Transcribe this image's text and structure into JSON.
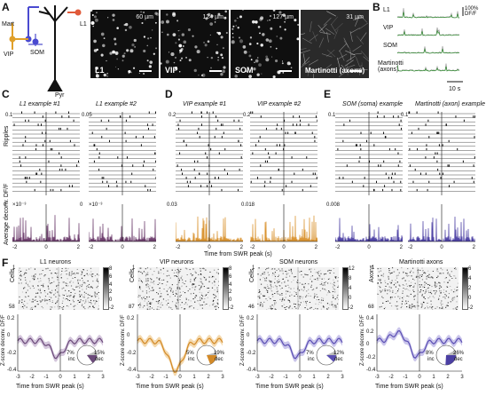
{
  "panel_labels": {
    "A": "A",
    "B": "B",
    "C": "C",
    "D": "D",
    "E": "E",
    "F": "F"
  },
  "panelA": {
    "cells": {
      "mart": "Mart",
      "l1": "L1",
      "vip": "VIP",
      "som": "SOM",
      "pyr": "Pyr"
    },
    "images": [
      {
        "label": "L1",
        "depth": "60 µm"
      },
      {
        "label": "VIP",
        "depth": "124 µm"
      },
      {
        "label": "SOM",
        "depth": "127 µm"
      },
      {
        "label": "Martinotti (axons)",
        "depth": "31 µm"
      }
    ]
  },
  "panelB": {
    "labels": [
      "L1",
      "VIP",
      "SOM",
      "Martinotti\n(axons)"
    ],
    "scale_y": "100%\nDF/F",
    "scale_x": "10 s"
  },
  "raster_panels": [
    {
      "title": "L1 example #1",
      "ymax": "0.1",
      "ymin": "0",
      "exp": "×10⁻³",
      "xticks": [
        "-2",
        "0",
        "2"
      ],
      "color": "#6b3b6b",
      "side_ylabel": "Ripples",
      "avg_ylabel": "Average deconv. DF/F"
    },
    {
      "title": "L1 example #2",
      "ymax": "0.05",
      "ymin": "0",
      "exp": "×10⁻³",
      "xticks": [
        "-2",
        "0",
        "2"
      ],
      "color": "#6b3b6b"
    },
    {
      "title": "VIP example #1",
      "ymax": "0.2",
      "ymin": "0.03",
      "exp": "",
      "xticks": [
        "-2",
        "0",
        "2"
      ],
      "color": "#d9922e"
    },
    {
      "title": "VIP example #2",
      "ymax": "0.2",
      "ymin": "0.018",
      "exp": "",
      "xticks": [
        "-2",
        "0",
        "2"
      ],
      "color": "#d9922e"
    },
    {
      "title": "SOM (soma) example",
      "ymax": "0.1",
      "ymin": "0.008",
      "exp": "",
      "xticks": [
        "-2",
        "0",
        "2"
      ],
      "color": "#4b3fa3"
    },
    {
      "title": "Martinotti (axon) example",
      "ymax": "0.1",
      "ymin": "",
      "exp": "",
      "xticks": [
        "-2",
        "0",
        "2"
      ],
      "color": "#4b3fa3"
    }
  ],
  "time_label_cde": "Time from SWR peak (s)",
  "avg_bottom_labels": {
    "l1a": "9",
    "l1b": "9"
  },
  "panelF": [
    {
      "title": "L1 neurons",
      "rows_label": "Cells",
      "rows": "58",
      "row_start": "1",
      "cb_ticks": [
        "8",
        "6",
        "4",
        "2",
        "0",
        "-2"
      ],
      "cb_label": "Z-score deconv. DF/F",
      "color": "#6b4a7a",
      "fill": "#c9b8d3",
      "inc": "7%",
      "dec": "15%",
      "inc_label": "inc",
      "dec_label": "dec",
      "inc_frac": 0.07,
      "dec_frac": 0.15,
      "dec_color": "#6b4a7a"
    },
    {
      "title": "VIP neurons",
      "rows_label": "Cells",
      "rows": "87",
      "row_start": "1",
      "cb_ticks": [
        "8",
        "6",
        "4",
        "2",
        "0",
        "-2"
      ],
      "cb_label": "Z-score deconv. DF/F",
      "color": "#d38a28",
      "fill": "#f1cf9a",
      "inc": "5%",
      "dec": "19%",
      "inc_label": "inc",
      "dec_label": "dec",
      "inc_frac": 0.05,
      "dec_frac": 0.19,
      "dec_color": "#d38a28"
    },
    {
      "title": "SOM neurons",
      "rows_label": "Cells",
      "rows": "46",
      "row_start": "1",
      "cb_ticks": [
        "12",
        "8",
        "4",
        "0",
        "-2"
      ],
      "cb_label": "Z-score deconv. DF/F",
      "color": "#5b4fb3",
      "fill": "#bdb6e6",
      "inc": "7%",
      "dec": "12%",
      "inc_label": "inc",
      "dec_label": "dec",
      "inc_frac": 0.07,
      "dec_frac": 0.12,
      "dec_color": "#5b4fb3"
    },
    {
      "title": "Martinotti axons",
      "rows_label": "Axons",
      "rows": "68",
      "row_start": "1",
      "cb_ticks": [
        "6",
        "4",
        "2",
        "0",
        "-2"
      ],
      "cb_label": "Z-score deconv. DF/F",
      "color": "#5b4fb3",
      "fill": "#bdb6e6",
      "inc": "8%",
      "dec": "26%",
      "inc_label": "inc",
      "dec_label": "dec",
      "inc_frac": 0.08,
      "dec_frac": 0.26,
      "dec_color": "#4b3fa3"
    }
  ],
  "panelF_axes": {
    "ylabel": "Z-score deconv. DF/F",
    "xlabel": "Time from SWR peak (s)",
    "xticks": [
      "-3",
      "-2",
      "-1",
      "0",
      "1",
      "2",
      "3"
    ],
    "yticks": [
      [
        "0.2",
        "0",
        "-0.2",
        "-0.4"
      ],
      [
        "0.2",
        "0",
        "-0.2",
        "-0.4"
      ],
      [
        "0.2",
        "0",
        "-0.2",
        "-0.4"
      ],
      [
        "0.4",
        "0.2",
        "0",
        "-0.2",
        "-0.4"
      ]
    ]
  },
  "colors": {
    "l1": "#6b3b6b",
    "vip": "#d9922e",
    "som": "#4b3fa3",
    "green": "#2f8a2f"
  }
}
